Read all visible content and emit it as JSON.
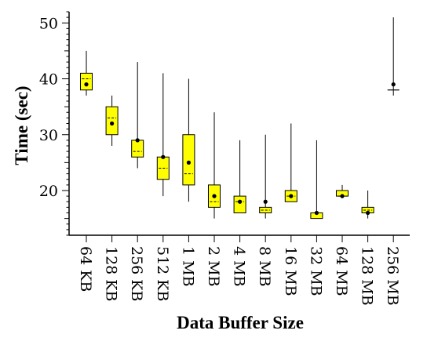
{
  "chart_data": {
    "type": "box",
    "title": "",
    "xlabel": "Data Buffer Size",
    "ylabel": "Time (sec)",
    "ylim": [
      12,
      52
    ],
    "yticks": [
      20,
      30,
      40,
      50
    ],
    "grid": false,
    "box_color": "#ffff00",
    "categories": [
      "64 KB",
      "128 KB",
      "256 KB",
      "512 KB",
      "1 MB",
      "2 MB",
      "4 MB",
      "8 MB",
      "16 MB",
      "32 MB",
      "64 MB",
      "128 MB",
      "256 MB"
    ],
    "series": [
      {
        "category": "64 KB",
        "min": 37,
        "q1": 38,
        "median": 40,
        "q3": 41,
        "max": 45,
        "mean": 39
      },
      {
        "category": "128 KB",
        "min": 28,
        "q1": 30,
        "median": 33,
        "q3": 35,
        "max": 37,
        "mean": 32
      },
      {
        "category": "256 KB",
        "min": 24,
        "q1": 26,
        "median": 27,
        "q3": 29,
        "max": 43,
        "mean": 29
      },
      {
        "category": "512 KB",
        "min": 19,
        "q1": 22,
        "median": 24,
        "q3": 26,
        "max": 41,
        "mean": 26
      },
      {
        "category": "1 MB",
        "min": 18,
        "q1": 21,
        "median": 23,
        "q3": 30,
        "max": 40,
        "mean": 25
      },
      {
        "category": "2 MB",
        "min": 15,
        "q1": 17,
        "median": 18,
        "q3": 21,
        "max": 34,
        "mean": 19
      },
      {
        "category": "4 MB",
        "min": 16,
        "q1": 16,
        "median": 18,
        "q3": 19,
        "max": 29,
        "mean": 18
      },
      {
        "category": "8 MB",
        "min": 15,
        "q1": 16,
        "median": 16.5,
        "q3": 17,
        "max": 30,
        "mean": 18
      },
      {
        "category": "16 MB",
        "min": 18,
        "q1": 18,
        "median": 19,
        "q3": 20,
        "max": 32,
        "mean": 19
      },
      {
        "category": "32 MB",
        "min": 15,
        "q1": 15,
        "median": 16,
        "q3": 16,
        "max": 29,
        "mean": 16
      },
      {
        "category": "64 MB",
        "min": 19,
        "q1": 19,
        "median": 19,
        "q3": 20,
        "max": 21,
        "mean": 19
      },
      {
        "category": "128 MB",
        "min": 15,
        "q1": 16,
        "median": 16.5,
        "q3": 17,
        "max": 20,
        "mean": 16
      },
      {
        "category": "256 MB",
        "min": 37,
        "q1": 38,
        "median": 38,
        "q3": 38,
        "max": 51,
        "mean": 39
      }
    ]
  }
}
